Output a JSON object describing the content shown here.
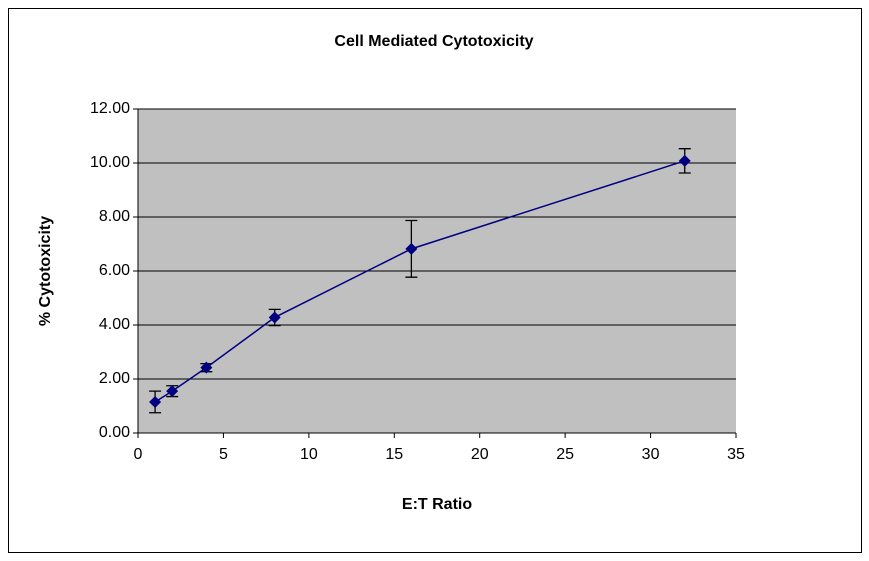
{
  "chart_data": {
    "type": "scatter",
    "title": "Cell Mediated Cytotoxicity",
    "x_label": "E:T Ratio",
    "y_label": "% Cytotoxicity",
    "series": [
      {
        "name": "Cytotoxicity",
        "color": "#000080",
        "x": [
          1,
          2,
          4,
          8,
          16,
          32
        ],
        "values": [
          1.15,
          1.55,
          2.42,
          4.28,
          6.82,
          10.08
        ],
        "errors": [
          0.4,
          0.2,
          0.15,
          0.3,
          1.05,
          0.45
        ]
      }
    ],
    "xlim": [
      0,
      35
    ],
    "xticks": [
      0,
      5,
      10,
      15,
      20,
      25,
      30,
      35
    ],
    "ylim": [
      0,
      12
    ],
    "yticks": [
      {
        "value": 0,
        "label": "0.00"
      },
      {
        "value": 2,
        "label": "2.00"
      },
      {
        "value": 4,
        "label": "4.00"
      },
      {
        "value": 6,
        "label": "6.00"
      },
      {
        "value": 8,
        "label": "8.00"
      },
      {
        "value": 10,
        "label": "10.00"
      },
      {
        "value": 12,
        "label": "12.00"
      }
    ],
    "grid": true,
    "plot_background": "#c0c0c0"
  }
}
